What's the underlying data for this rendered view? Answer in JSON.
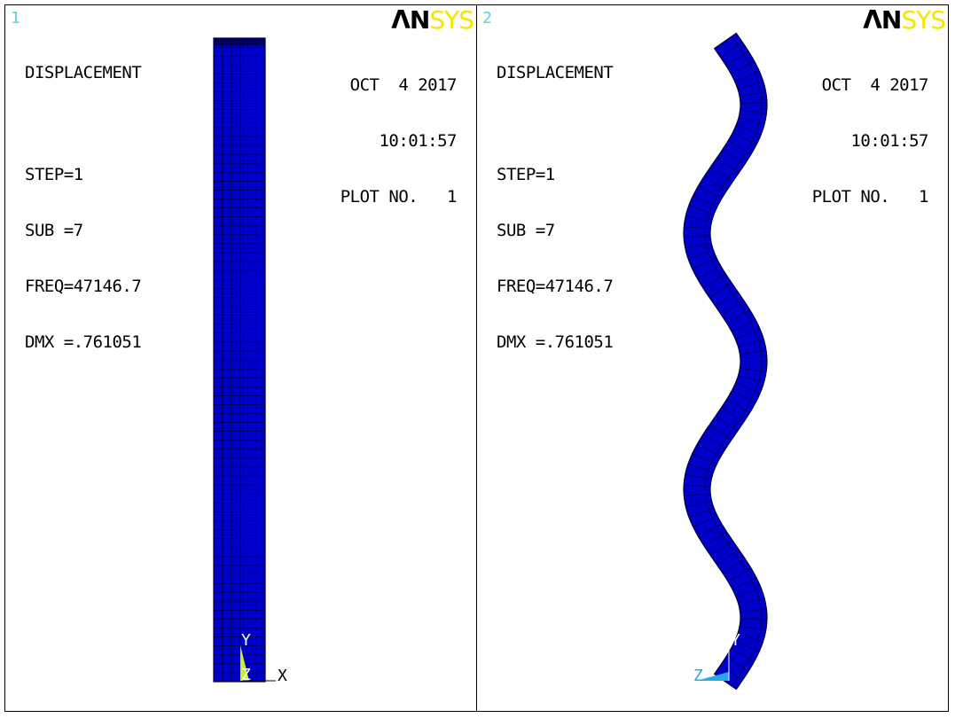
{
  "viewports": [
    {
      "number": "1",
      "logo": {
        "an": "ΛN",
        "sys": "SYS"
      },
      "info": {
        "title": "DISPLACEMENT",
        "step": "STEP=1",
        "sub": "SUB =7",
        "freq": "FREQ=47146.7",
        "dmx": "DMX =.761051"
      },
      "stamp": {
        "date": "OCT  4 2017",
        "time": "10:01:57",
        "plot": "PLOT NO.   1"
      },
      "triad": {
        "y": "Y",
        "z": "Z",
        "x": "X"
      }
    },
    {
      "number": "2",
      "logo": {
        "an": "ΛN",
        "sys": "SYS"
      },
      "info": {
        "title": "DISPLACEMENT",
        "step": "STEP=1",
        "sub": "SUB =7",
        "freq": "FREQ=47146.7",
        "dmx": "DMX =.761051"
      },
      "stamp": {
        "date": "OCT  4 2017",
        "time": "10:01:57",
        "plot": "PLOT NO.   1"
      },
      "triad": {
        "y": "Y",
        "z": "Z"
      }
    }
  ],
  "colors": {
    "mesh_fill": "#0000cc",
    "mesh_line": "#000033",
    "viewport_number": "#4fd8e0",
    "logo_sys": "#f5e600",
    "triad_y": "#c6ef3a",
    "triad_z": "#2aa7e8"
  }
}
